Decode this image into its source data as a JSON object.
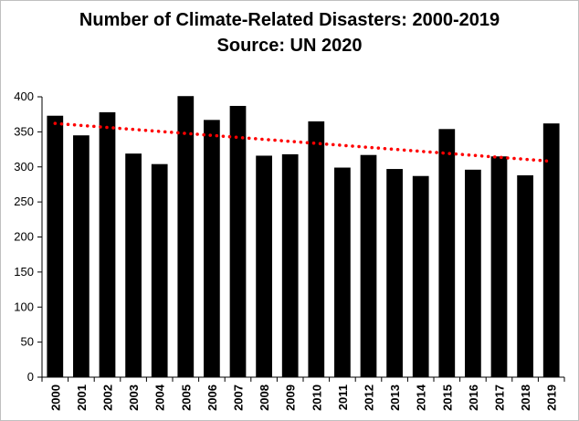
{
  "chart_data": {
    "type": "bar",
    "title": "Number of Climate-Related Disasters: 2000-2019",
    "subtitle": "Source: UN 2020",
    "xlabel": "",
    "ylabel": "",
    "categories": [
      "2000",
      "2001",
      "2002",
      "2003",
      "2004",
      "2005",
      "2006",
      "2007",
      "2008",
      "2009",
      "2010",
      "2011",
      "2012",
      "2013",
      "2014",
      "2015",
      "2016",
      "2017",
      "2018",
      "2019"
    ],
    "values": [
      373,
      345,
      378,
      319,
      304,
      401,
      367,
      387,
      316,
      318,
      365,
      299,
      317,
      297,
      287,
      354,
      296,
      315,
      288,
      362
    ],
    "ylim": [
      0,
      400
    ],
    "yticks": [
      0,
      50,
      100,
      150,
      200,
      250,
      300,
      350,
      400
    ],
    "trendline": {
      "type": "linear",
      "start": 362,
      "end": 308
    },
    "grid": false,
    "legend": "none",
    "colors": {
      "bar": "#000000",
      "trendline": "#ff0000",
      "frame": "#bfbfbf"
    }
  }
}
